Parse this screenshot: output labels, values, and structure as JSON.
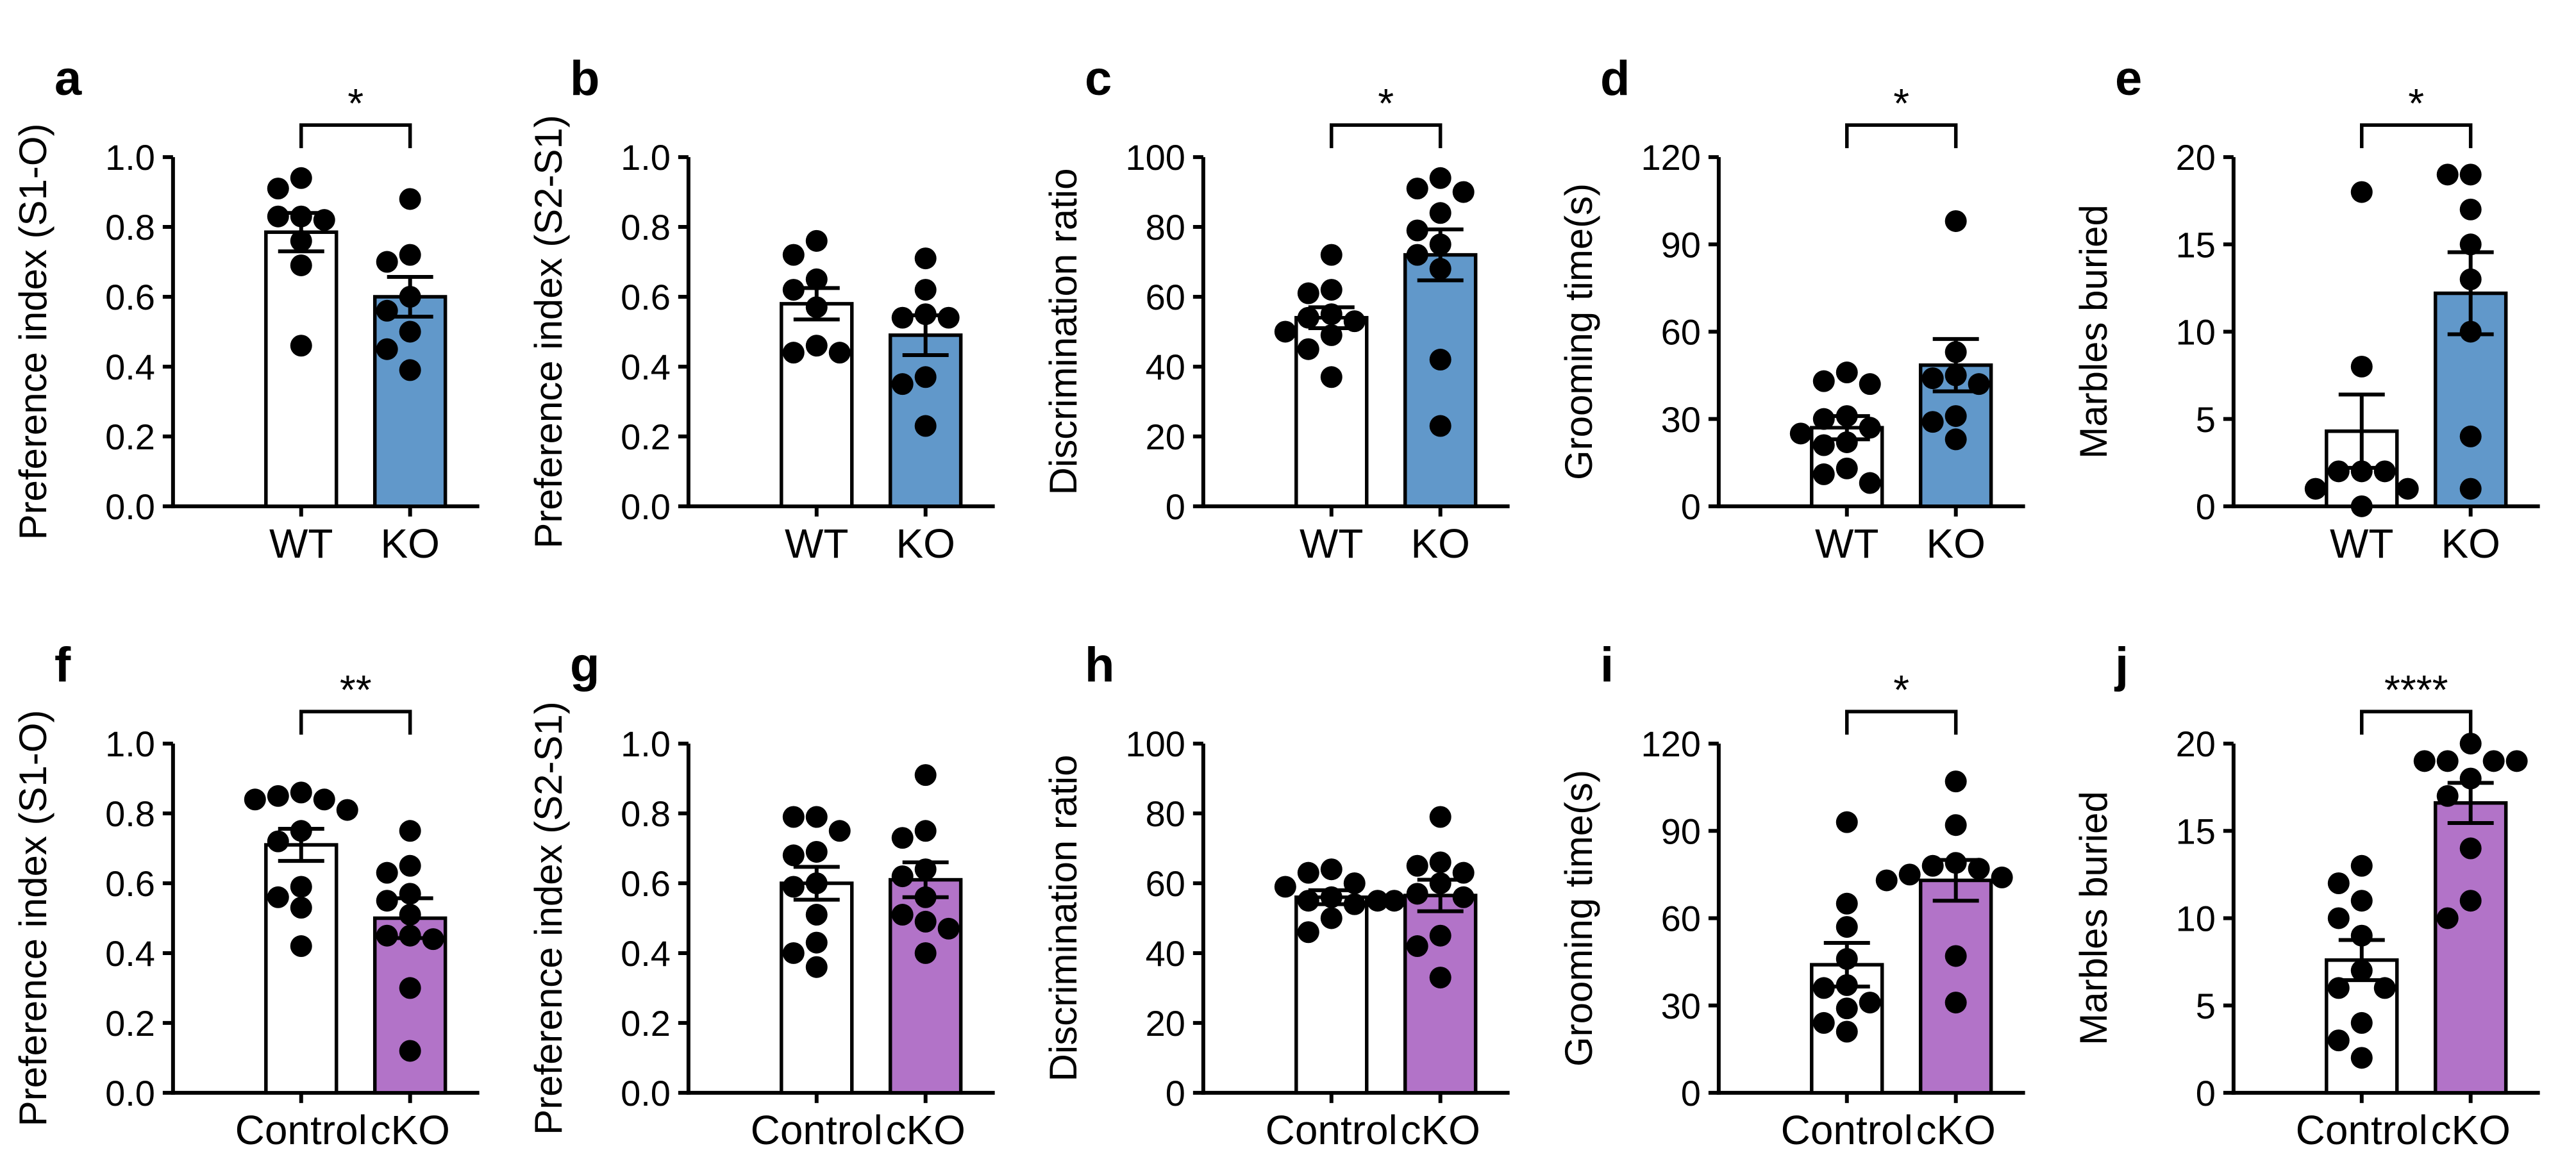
{
  "colors": {
    "wt_fill": "#FFFFFF",
    "ko_fill": "#6198CA",
    "cko_fill": "#B273C8",
    "ink": "#000000",
    "background": "#FFFFFF"
  },
  "chart_data": [
    {
      "type": "bar",
      "panel_letter": "a",
      "ylabel": "Preference index (S1-O)",
      "ylim": [
        0,
        1
      ],
      "yticks": [
        0,
        0.2,
        0.4,
        0.6,
        0.8,
        1.0
      ],
      "tick_decimals": 1,
      "categories": [
        "WT",
        "KO"
      ],
      "significance": "*",
      "grid": false,
      "series": [
        {
          "name": "WT",
          "mean": 0.785,
          "sem": 0.055,
          "fill": "#FFFFFF",
          "points": [
            0.94,
            0.91,
            0.83,
            0.83,
            0.82,
            0.76,
            0.69,
            0.46
          ]
        },
        {
          "name": "KO",
          "mean": 0.6,
          "sem": 0.057,
          "fill": "#6198CA",
          "points": [
            0.88,
            0.72,
            0.7,
            0.6,
            0.56,
            0.5,
            0.45,
            0.39
          ]
        }
      ]
    },
    {
      "type": "bar",
      "panel_letter": "b",
      "ylabel": "Preference index (S2-S1)",
      "ylim": [
        0,
        1
      ],
      "yticks": [
        0,
        0.2,
        0.4,
        0.6,
        0.8,
        1.0
      ],
      "tick_decimals": 1,
      "categories": [
        "WT",
        "KO"
      ],
      "significance": null,
      "grid": false,
      "series": [
        {
          "name": "WT",
          "mean": 0.58,
          "sem": 0.045,
          "fill": "#FFFFFF",
          "points": [
            0.76,
            0.72,
            0.65,
            0.62,
            0.57,
            0.46,
            0.44,
            0.44
          ]
        },
        {
          "name": "KO",
          "mean": 0.49,
          "sem": 0.057,
          "fill": "#6198CA",
          "points": [
            0.71,
            0.62,
            0.55,
            0.54,
            0.54,
            0.37,
            0.35,
            0.23
          ]
        }
      ]
    },
    {
      "type": "bar",
      "panel_letter": "c",
      "ylabel": "Discrimination ratio",
      "ylim": [
        0,
        100
      ],
      "yticks": [
        0,
        20,
        40,
        60,
        80,
        100
      ],
      "tick_decimals": 0,
      "categories": [
        "WT",
        "KO"
      ],
      "significance": "*",
      "grid": false,
      "series": [
        {
          "name": "WT",
          "mean": 54,
          "sem": 3,
          "fill": "#FFFFFF",
          "points": [
            72,
            62,
            61,
            55,
            54,
            53,
            50,
            49,
            45,
            37
          ]
        },
        {
          "name": "KO",
          "mean": 72,
          "sem": 7.3,
          "fill": "#6198CA",
          "points": [
            94,
            91,
            90,
            84,
            79,
            75,
            72,
            68,
            42,
            23
          ]
        }
      ]
    },
    {
      "type": "bar",
      "panel_letter": "d",
      "ylabel": "Grooming time(s)",
      "ylim": [
        0,
        120
      ],
      "yticks": [
        0,
        30,
        60,
        90,
        120
      ],
      "tick_decimals": 0,
      "categories": [
        "WT",
        "KO"
      ],
      "significance": "*",
      "grid": false,
      "series": [
        {
          "name": "WT",
          "mean": 27,
          "sem": 4,
          "fill": "#FFFFFF",
          "points": [
            46,
            43,
            42,
            31,
            30,
            27,
            25,
            22,
            21,
            13,
            11,
            8
          ]
        },
        {
          "name": "KO",
          "mean": 48.5,
          "sem": 9,
          "fill": "#6198CA",
          "points": [
            98,
            53,
            45,
            44,
            42,
            31,
            29,
            23
          ]
        }
      ]
    },
    {
      "type": "bar",
      "panel_letter": "e",
      "ylabel": "Marbles buried",
      "ylim": [
        0,
        20
      ],
      "yticks": [
        0,
        5,
        10,
        15,
        20
      ],
      "tick_decimals": 0,
      "categories": [
        "WT",
        "KO"
      ],
      "significance": "*",
      "grid": false,
      "series": [
        {
          "name": "WT",
          "mean": 4.3,
          "sem": 2.1,
          "fill": "#FFFFFF",
          "points": [
            18,
            8,
            2,
            2,
            2,
            1,
            1,
            0
          ]
        },
        {
          "name": "KO",
          "mean": 12.2,
          "sem": 2.35,
          "fill": "#6198CA",
          "points": [
            19,
            19,
            17,
            15,
            13,
            10,
            4,
            1
          ]
        }
      ]
    },
    {
      "type": "bar",
      "panel_letter": "f",
      "ylabel": "Preference index (S1-O)",
      "ylim": [
        0,
        1
      ],
      "yticks": [
        0,
        0.2,
        0.4,
        0.6,
        0.8,
        1.0
      ],
      "tick_decimals": 1,
      "categories": [
        "Control",
        "cKO"
      ],
      "significance": "**",
      "grid": false,
      "series": [
        {
          "name": "Control",
          "mean": 0.71,
          "sem": 0.046,
          "fill": "#FFFFFF",
          "points": [
            0.86,
            0.85,
            0.84,
            0.84,
            0.81,
            0.75,
            0.72,
            0.59,
            0.56,
            0.53,
            0.42
          ]
        },
        {
          "name": "cKO",
          "mean": 0.5,
          "sem": 0.057,
          "fill": "#B273C8",
          "points": [
            0.75,
            0.65,
            0.63,
            0.57,
            0.55,
            0.51,
            0.45,
            0.45,
            0.44,
            0.3,
            0.12
          ]
        }
      ]
    },
    {
      "type": "bar",
      "panel_letter": "g",
      "ylabel": "Preference index (S2-S1)",
      "ylim": [
        0,
        1
      ],
      "yticks": [
        0,
        0.2,
        0.4,
        0.6,
        0.8,
        1.0
      ],
      "tick_decimals": 1,
      "categories": [
        "Control",
        "cKO"
      ],
      "significance": null,
      "grid": false,
      "series": [
        {
          "name": "Control",
          "mean": 0.6,
          "sem": 0.047,
          "fill": "#FFFFFF",
          "points": [
            0.79,
            0.79,
            0.75,
            0.69,
            0.68,
            0.6,
            0.59,
            0.51,
            0.43,
            0.4,
            0.36
          ]
        },
        {
          "name": "cKO",
          "mean": 0.61,
          "sem": 0.05,
          "fill": "#B273C8",
          "points": [
            0.91,
            0.75,
            0.73,
            0.64,
            0.62,
            0.56,
            0.51,
            0.49,
            0.47,
            0.4
          ]
        }
      ]
    },
    {
      "type": "bar",
      "panel_letter": "h",
      "ylabel": "Discrimination ratio",
      "ylim": [
        0,
        100
      ],
      "yticks": [
        0,
        20,
        40,
        60,
        80,
        100
      ],
      "tick_decimals": 0,
      "categories": [
        "Control",
        "cKO"
      ],
      "significance": null,
      "grid": false,
      "series": [
        {
          "name": "Control",
          "mean": 56,
          "sem": 2,
          "fill": "#FFFFFF",
          "points": [
            64,
            63,
            60,
            59,
            56,
            55,
            55,
            54,
            50,
            46
          ]
        },
        {
          "name": "cKO",
          "mean": 56.5,
          "sem": 4.5,
          "fill": "#B273C8",
          "points": [
            79,
            66,
            65,
            63,
            60,
            57,
            56,
            55,
            45,
            42,
            33
          ]
        }
      ]
    },
    {
      "type": "bar",
      "panel_letter": "i",
      "ylabel": "Grooming time(s)",
      "ylim": [
        0,
        120
      ],
      "yticks": [
        0,
        30,
        60,
        90,
        120
      ],
      "tick_decimals": 0,
      "categories": [
        "Control",
        "cKO"
      ],
      "significance": "*",
      "grid": false,
      "series": [
        {
          "name": "Control",
          "mean": 44,
          "sem": 7.5,
          "fill": "#FFFFFF",
          "points": [
            93,
            65,
            57,
            46,
            37,
            36,
            31,
            29,
            24,
            21
          ]
        },
        {
          "name": "cKO",
          "mean": 73,
          "sem": 7,
          "fill": "#B273C8",
          "points": [
            107,
            92,
            79,
            78,
            77,
            75,
            74,
            73,
            47,
            31
          ]
        }
      ]
    },
    {
      "type": "bar",
      "panel_letter": "j",
      "ylabel": "Marbles buried",
      "ylim": [
        0,
        20
      ],
      "yticks": [
        0,
        5,
        10,
        15,
        20
      ],
      "tick_decimals": 0,
      "categories": [
        "Control",
        "cKO"
      ],
      "significance": "****",
      "grid": false,
      "series": [
        {
          "name": "Control",
          "mean": 7.6,
          "sem": 1.15,
          "fill": "#FFFFFF",
          "points": [
            13,
            12,
            11,
            10,
            9,
            7,
            6,
            6,
            4,
            3,
            2
          ]
        },
        {
          "name": "cKO",
          "mean": 16.6,
          "sem": 1.15,
          "fill": "#B273C8",
          "points": [
            20,
            19,
            19,
            19,
            19,
            18,
            17,
            14,
            11,
            10
          ]
        }
      ]
    }
  ]
}
